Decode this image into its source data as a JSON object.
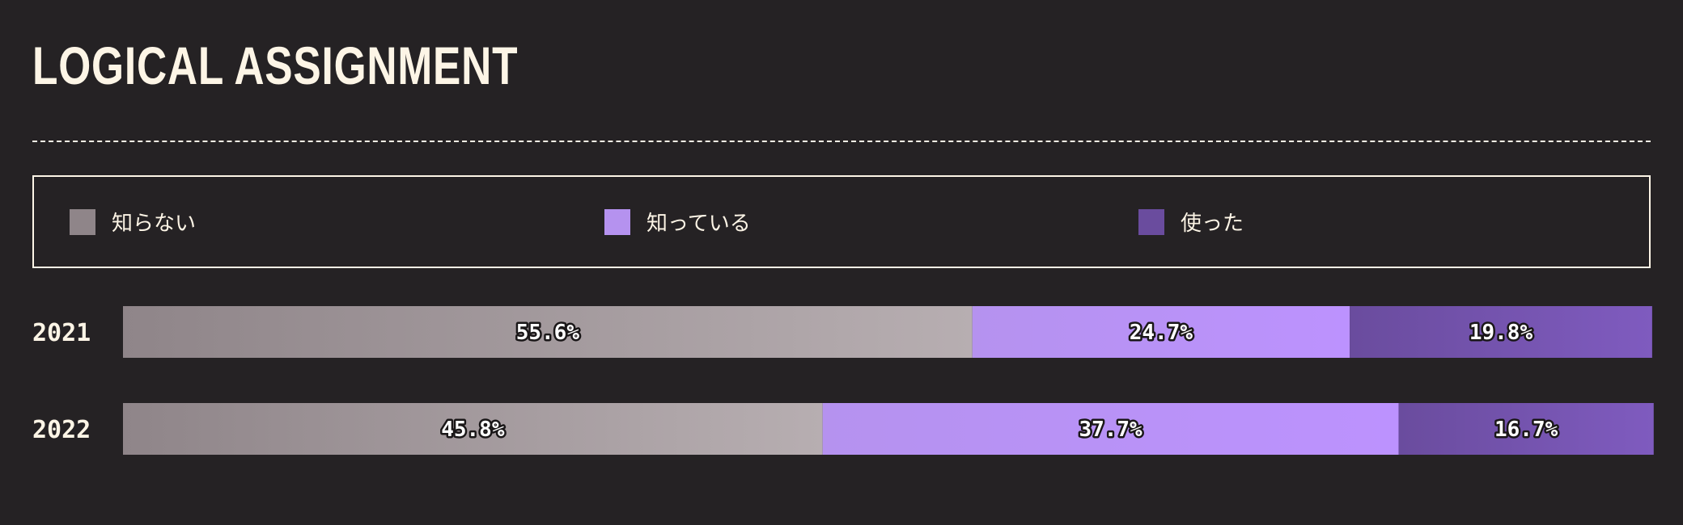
{
  "title": "LOGICAL ASSIGNMENT",
  "chart_data": {
    "type": "bar",
    "orientation": "horizontal",
    "stacked": true,
    "percent_stacked": true,
    "categories": [
      "2021",
      "2022"
    ],
    "series": [
      {
        "name": "知らない",
        "values": [
          55.6,
          45.8
        ],
        "color": "#8f8589",
        "color_end": "#b7aeb1"
      },
      {
        "name": "知っている",
        "values": [
          24.7,
          37.7
        ],
        "color": "#b592ef",
        "color_end": "#bc92fe"
      },
      {
        "name": "使った",
        "values": [
          19.8,
          16.7
        ],
        "color": "#6a4c9e",
        "color_end": "#7f5bbf"
      }
    ],
    "data_labels": [
      [
        "55.6%",
        "45.8%"
      ],
      [
        "24.7%",
        "37.7%"
      ],
      [
        "19.8%",
        "16.7%"
      ]
    ],
    "legend_position": "top",
    "xlim": [
      0,
      100
    ]
  }
}
